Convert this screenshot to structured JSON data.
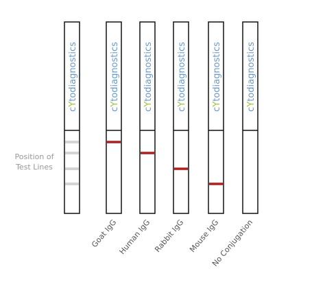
{
  "brand": {
    "parts": [
      "c",
      "Y",
      "todiagnostics"
    ]
  },
  "position_label": [
    "Position of",
    "Test Lines"
  ],
  "strip_labels": [
    "Goat IgG",
    "Human IgG",
    "Rabbit IgG",
    "Mouse IgG",
    "No Conjugation"
  ]
}
